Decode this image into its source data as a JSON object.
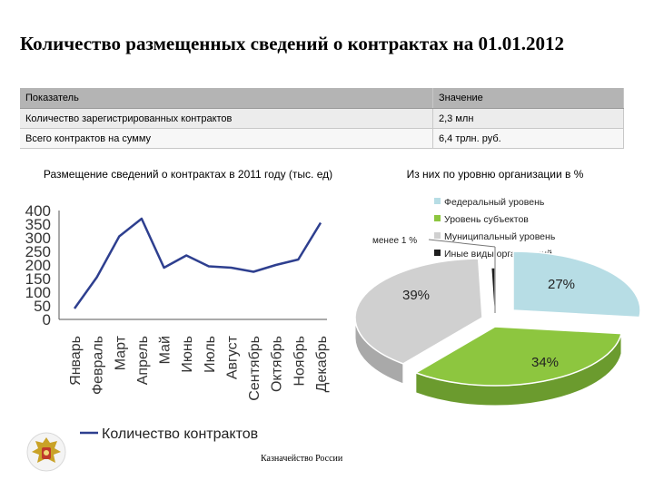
{
  "title": "Количество размещенных сведений о контрактах на 01.01.2012",
  "table": {
    "headers": [
      "Показатель",
      "Значение"
    ],
    "rows": [
      [
        "Количество зарегистрированных контрактов",
        "2,3 млн"
      ],
      [
        "Всего контрактов на сумму",
        "6,4  трлн. руб."
      ]
    ]
  },
  "line_chart_title": "Размещение сведений о контрактах в 2011 году (тыс. ед)",
  "pie_chart_title": "Из них по уровню организации в %",
  "pie_annotation": "менее 1 %",
  "footer": "Казначейство России",
  "colors": {
    "line": "#2e3f8f",
    "federal": "#b7dde5",
    "subjects": "#8dc63f",
    "municipal": "#d0d0d0",
    "other": "#1e1e1e"
  },
  "chart_data": [
    {
      "type": "line",
      "title": "Размещение сведений о контрактах в 2011 году (тыс. ед)",
      "categories": [
        "Январь",
        "Февраль",
        "Март",
        "Апрель",
        "Май",
        "Июнь",
        "Июль",
        "Август",
        "Сентябрь",
        "Октябрь",
        "Ноябрь",
        "Декабрь"
      ],
      "series": [
        {
          "name": "Количество контрактов",
          "values": [
            40,
            155,
            305,
            370,
            190,
            235,
            195,
            190,
            175,
            200,
            220,
            355
          ]
        }
      ],
      "ylim": [
        0,
        400
      ],
      "yticks": [
        "0",
        "50",
        "100",
        "150",
        "200",
        "250",
        "300",
        "350",
        "400"
      ],
      "legend": "bottom"
    },
    {
      "type": "pie",
      "title": "Из них по уровню организации в %",
      "series": [
        {
          "name": "Федеральный уровень",
          "value": 27,
          "label": "27%"
        },
        {
          "name": "Уровень субъектов",
          "value": 34,
          "label": "34%"
        },
        {
          "name": "Муниципальный уровень",
          "value": 39,
          "label": "39%"
        },
        {
          "name": "Иные виды организаций",
          "value": 0.5,
          "label": "менее 1 %"
        }
      ],
      "legend": "top"
    }
  ]
}
